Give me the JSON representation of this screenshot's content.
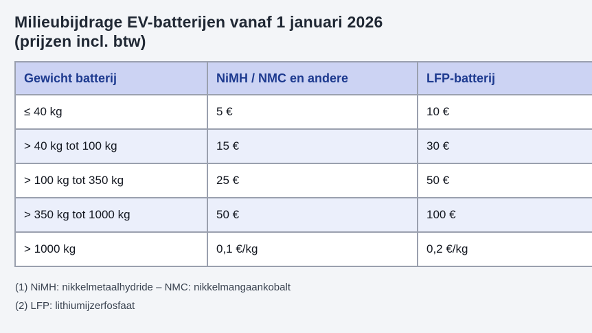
{
  "page": {
    "title_line1": "Milieubijdrage EV-batterijen vanaf 1 januari 2026",
    "title_line2": "(prijzen incl. btw)"
  },
  "table": {
    "columns": [
      "Gewicht batterij",
      "NiMH / NMC en andere",
      "LFP-batterij"
    ],
    "rows": [
      [
        "≤ 40 kg",
        "5 €",
        "10 €"
      ],
      [
        "> 40 kg tot 100 kg",
        "15 €",
        "30 €"
      ],
      [
        "> 100 kg tot 350 kg",
        "25 €",
        "50 €"
      ],
      [
        "> 350 kg tot 1000 kg",
        "50 €",
        "100 €"
      ],
      [
        "> 1000 kg",
        "0,1 €/kg",
        "0,2 €/kg"
      ]
    ]
  },
  "footnotes": [
    "(1) NiMH: nikkelmetaalhydride – NMC: nikkelmangaankobalt",
    "(2) LFP: lithiumijzerfosfaat"
  ],
  "colors": {
    "page_bg": "#f3f5f8",
    "header_bg": "#ccd3f3",
    "header_text": "#1d3a8f",
    "row_bg": "#ffffff",
    "row_alt_bg": "#ebeffb",
    "border": "#9aa0ae",
    "title_text": "#1f2733",
    "cell_text": "#12161f",
    "footnote_text": "#3a4350"
  }
}
